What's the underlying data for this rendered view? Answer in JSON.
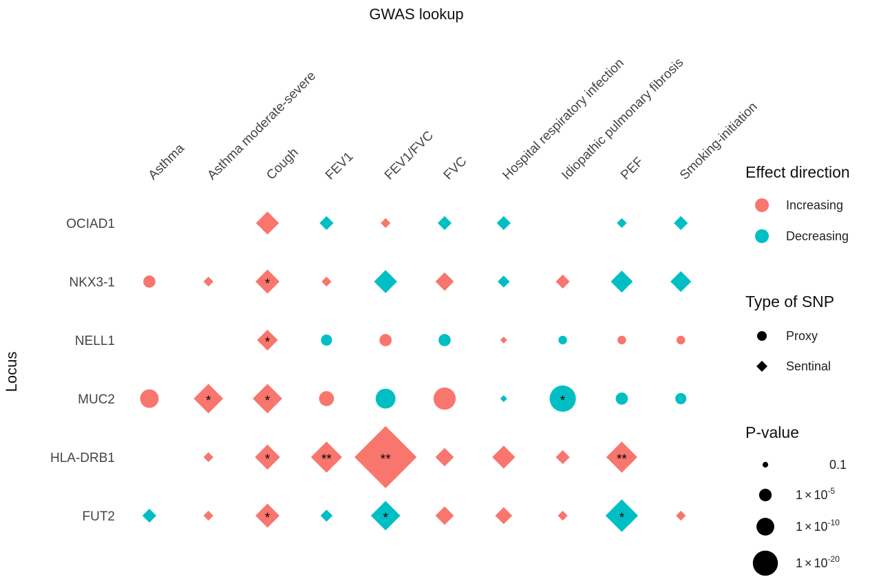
{
  "chart_data": {
    "type": "scatter",
    "title": "GWAS lookup",
    "ylabel": "Locus",
    "x_categories": [
      "Asthma",
      "Asthma moderate-severe",
      "Cough",
      "FEV1",
      "FEV1/FVC",
      "FVC",
      "Hospital respiratory infection",
      "Idiopathic pulmonary fibrosis",
      "PEF",
      "Smoking-initiation"
    ],
    "y_categories": [
      "OCIAD1",
      "NKX3-1",
      "NELL1",
      "MUC2",
      "HLA-DRB1",
      "FUT2"
    ],
    "colors": {
      "Increasing": "#F8766D",
      "Decreasing": "#00BFC4"
    },
    "points": [
      {
        "locus": "OCIAD1",
        "trait": "Cough",
        "direction": "Increasing",
        "snp": "Sentinal",
        "neglog10p": 5.5,
        "stars": ""
      },
      {
        "locus": "OCIAD1",
        "trait": "FEV1",
        "direction": "Decreasing",
        "snp": "Sentinal",
        "neglog10p": 2,
        "stars": ""
      },
      {
        "locus": "OCIAD1",
        "trait": "FEV1/FVC",
        "direction": "Increasing",
        "snp": "Sentinal",
        "neglog10p": 1,
        "stars": ""
      },
      {
        "locus": "OCIAD1",
        "trait": "FVC",
        "direction": "Decreasing",
        "snp": "Sentinal",
        "neglog10p": 2,
        "stars": ""
      },
      {
        "locus": "OCIAD1",
        "trait": "Hospital respiratory infection",
        "direction": "Decreasing",
        "snp": "Sentinal",
        "neglog10p": 2,
        "stars": ""
      },
      {
        "locus": "OCIAD1",
        "trait": "PEF",
        "direction": "Decreasing",
        "snp": "Sentinal",
        "neglog10p": 1,
        "stars": ""
      },
      {
        "locus": "OCIAD1",
        "trait": "Smoking-initiation",
        "direction": "Decreasing",
        "snp": "Sentinal",
        "neglog10p": 2,
        "stars": ""
      },
      {
        "locus": "NKX3-1",
        "trait": "Asthma",
        "direction": "Increasing",
        "snp": "Proxy",
        "neglog10p": 3,
        "stars": ""
      },
      {
        "locus": "NKX3-1",
        "trait": "Asthma moderate-severe",
        "direction": "Increasing",
        "snp": "Sentinal",
        "neglog10p": 1,
        "stars": ""
      },
      {
        "locus": "NKX3-1",
        "trait": "Cough",
        "direction": "Increasing",
        "snp": "Sentinal",
        "neglog10p": 6,
        "stars": "*"
      },
      {
        "locus": "NKX3-1",
        "trait": "FEV1",
        "direction": "Increasing",
        "snp": "Sentinal",
        "neglog10p": 1,
        "stars": ""
      },
      {
        "locus": "NKX3-1",
        "trait": "FEV1/FVC",
        "direction": "Decreasing",
        "snp": "Sentinal",
        "neglog10p": 5.5,
        "stars": ""
      },
      {
        "locus": "NKX3-1",
        "trait": "FVC",
        "direction": "Increasing",
        "snp": "Sentinal",
        "neglog10p": 3.5,
        "stars": ""
      },
      {
        "locus": "NKX3-1",
        "trait": "Hospital respiratory infection",
        "direction": "Decreasing",
        "snp": "Sentinal",
        "neglog10p": 1.5,
        "stars": ""
      },
      {
        "locus": "NKX3-1",
        "trait": "Idiopathic pulmonary fibrosis",
        "direction": "Increasing",
        "snp": "Sentinal",
        "neglog10p": 2,
        "stars": ""
      },
      {
        "locus": "NKX3-1",
        "trait": "PEF",
        "direction": "Decreasing",
        "snp": "Sentinal",
        "neglog10p": 5,
        "stars": ""
      },
      {
        "locus": "NKX3-1",
        "trait": "Smoking-initiation",
        "direction": "Decreasing",
        "snp": "Sentinal",
        "neglog10p": 4.5,
        "stars": ""
      },
      {
        "locus": "NELL1",
        "trait": "Cough",
        "direction": "Increasing",
        "snp": "Sentinal",
        "neglog10p": 4.5,
        "stars": "*"
      },
      {
        "locus": "NELL1",
        "trait": "FEV1",
        "direction": "Decreasing",
        "snp": "Proxy",
        "neglog10p": 2.5,
        "stars": ""
      },
      {
        "locus": "NELL1",
        "trait": "FEV1/FVC",
        "direction": "Increasing",
        "snp": "Proxy",
        "neglog10p": 3,
        "stars": ""
      },
      {
        "locus": "NELL1",
        "trait": "FVC",
        "direction": "Decreasing",
        "snp": "Proxy",
        "neglog10p": 3,
        "stars": ""
      },
      {
        "locus": "NELL1",
        "trait": "Hospital respiratory infection",
        "direction": "Increasing",
        "snp": "Sentinal",
        "neglog10p": 0.5,
        "stars": ""
      },
      {
        "locus": "NELL1",
        "trait": "Idiopathic pulmonary fibrosis",
        "direction": "Decreasing",
        "snp": "Proxy",
        "neglog10p": 1.5,
        "stars": ""
      },
      {
        "locus": "NELL1",
        "trait": "PEF",
        "direction": "Increasing",
        "snp": "Proxy",
        "neglog10p": 1.5,
        "stars": ""
      },
      {
        "locus": "NELL1",
        "trait": "Smoking-initiation",
        "direction": "Increasing",
        "snp": "Proxy",
        "neglog10p": 1.5,
        "stars": ""
      },
      {
        "locus": "MUC2",
        "trait": "Asthma",
        "direction": "Increasing",
        "snp": "Proxy",
        "neglog10p": 7,
        "stars": ""
      },
      {
        "locus": "MUC2",
        "trait": "Asthma moderate-severe",
        "direction": "Increasing",
        "snp": "Sentinal",
        "neglog10p": 9,
        "stars": "*"
      },
      {
        "locus": "MUC2",
        "trait": "Cough",
        "direction": "Increasing",
        "snp": "Sentinal",
        "neglog10p": 9,
        "stars": "*"
      },
      {
        "locus": "MUC2",
        "trait": "FEV1",
        "direction": "Increasing",
        "snp": "Proxy",
        "neglog10p": 4.5,
        "stars": ""
      },
      {
        "locus": "MUC2",
        "trait": "FEV1/FVC",
        "direction": "Decreasing",
        "snp": "Proxy",
        "neglog10p": 8,
        "stars": ""
      },
      {
        "locus": "MUC2",
        "trait": "FVC",
        "direction": "Increasing",
        "snp": "Proxy",
        "neglog10p": 10,
        "stars": ""
      },
      {
        "locus": "MUC2",
        "trait": "Hospital respiratory infection",
        "direction": "Decreasing",
        "snp": "Sentinal",
        "neglog10p": 0.5,
        "stars": ""
      },
      {
        "locus": "MUC2",
        "trait": "Idiopathic pulmonary fibrosis",
        "direction": "Decreasing",
        "snp": "Proxy",
        "neglog10p": 14,
        "stars": "*"
      },
      {
        "locus": "MUC2",
        "trait": "PEF",
        "direction": "Decreasing",
        "snp": "Proxy",
        "neglog10p": 3,
        "stars": ""
      },
      {
        "locus": "MUC2",
        "trait": "Smoking-initiation",
        "direction": "Decreasing",
        "snp": "Proxy",
        "neglog10p": 2.5,
        "stars": ""
      },
      {
        "locus": "HLA-DRB1",
        "trait": "Asthma moderate-severe",
        "direction": "Increasing",
        "snp": "Sentinal",
        "neglog10p": 1,
        "stars": ""
      },
      {
        "locus": "HLA-DRB1",
        "trait": "Cough",
        "direction": "Increasing",
        "snp": "Sentinal",
        "neglog10p": 6.5,
        "stars": "*"
      },
      {
        "locus": "HLA-DRB1",
        "trait": "FEV1",
        "direction": "Increasing",
        "snp": "Sentinal",
        "neglog10p": 10,
        "stars": "**"
      },
      {
        "locus": "HLA-DRB1",
        "trait": "FEV1/FVC",
        "direction": "Increasing",
        "snp": "Sentinal",
        "neglog10p": 40,
        "stars": "**"
      },
      {
        "locus": "HLA-DRB1",
        "trait": "FVC",
        "direction": "Increasing",
        "snp": "Sentinal",
        "neglog10p": 3.5,
        "stars": ""
      },
      {
        "locus": "HLA-DRB1",
        "trait": "Hospital respiratory infection",
        "direction": "Increasing",
        "snp": "Sentinal",
        "neglog10p": 5.5,
        "stars": ""
      },
      {
        "locus": "HLA-DRB1",
        "trait": "Idiopathic pulmonary fibrosis",
        "direction": "Increasing",
        "snp": "Sentinal",
        "neglog10p": 2,
        "stars": ""
      },
      {
        "locus": "HLA-DRB1",
        "trait": "PEF",
        "direction": "Increasing",
        "snp": "Sentinal",
        "neglog10p": 10,
        "stars": "**"
      },
      {
        "locus": "FUT2",
        "trait": "Asthma",
        "direction": "Decreasing",
        "snp": "Sentinal",
        "neglog10p": 2,
        "stars": ""
      },
      {
        "locus": "FUT2",
        "trait": "Asthma moderate-severe",
        "direction": "Increasing",
        "snp": "Sentinal",
        "neglog10p": 1,
        "stars": ""
      },
      {
        "locus": "FUT2",
        "trait": "Cough",
        "direction": "Increasing",
        "snp": "Sentinal",
        "neglog10p": 6,
        "stars": "*"
      },
      {
        "locus": "FUT2",
        "trait": "FEV1",
        "direction": "Decreasing",
        "snp": "Sentinal",
        "neglog10p": 1.5,
        "stars": ""
      },
      {
        "locus": "FUT2",
        "trait": "FEV1/FVC",
        "direction": "Decreasing",
        "snp": "Sentinal",
        "neglog10p": 9,
        "stars": "*"
      },
      {
        "locus": "FUT2",
        "trait": "FVC",
        "direction": "Increasing",
        "snp": "Sentinal",
        "neglog10p": 3.5,
        "stars": ""
      },
      {
        "locus": "FUT2",
        "trait": "Hospital respiratory infection",
        "direction": "Increasing",
        "snp": "Sentinal",
        "neglog10p": 3,
        "stars": ""
      },
      {
        "locus": "FUT2",
        "trait": "Idiopathic pulmonary fibrosis",
        "direction": "Increasing",
        "snp": "Sentinal",
        "neglog10p": 1,
        "stars": ""
      },
      {
        "locus": "FUT2",
        "trait": "PEF",
        "direction": "Decreasing",
        "snp": "Sentinal",
        "neglog10p": 11,
        "stars": "*"
      },
      {
        "locus": "FUT2",
        "trait": "Smoking-initiation",
        "direction": "Increasing",
        "snp": "Sentinal",
        "neglog10p": 1,
        "stars": ""
      }
    ],
    "legend": {
      "effect_direction": {
        "title": "Effect direction",
        "items": [
          {
            "label": "Increasing",
            "color": "#F8766D"
          },
          {
            "label": "Decreasing",
            "color": "#00BFC4"
          }
        ]
      },
      "snp_type": {
        "title": "Type of SNP",
        "items": [
          {
            "label": "Proxy",
            "shape": "circle"
          },
          {
            "label": "Sentinal",
            "shape": "diamond"
          }
        ]
      },
      "p_value": {
        "title": "P-value",
        "items": [
          {
            "label": "0.1",
            "neglog10p": 1
          },
          {
            "mantissa": "1",
            "times": "×",
            "base": "10",
            "exponent": "-5",
            "neglog10p": 5
          },
          {
            "mantissa": "1",
            "times": "×",
            "base": "10",
            "exponent": "-10",
            "neglog10p": 10
          },
          {
            "mantissa": "1",
            "times": "×",
            "base": "10",
            "exponent": "-20",
            "neglog10p": 20
          }
        ]
      }
    }
  }
}
